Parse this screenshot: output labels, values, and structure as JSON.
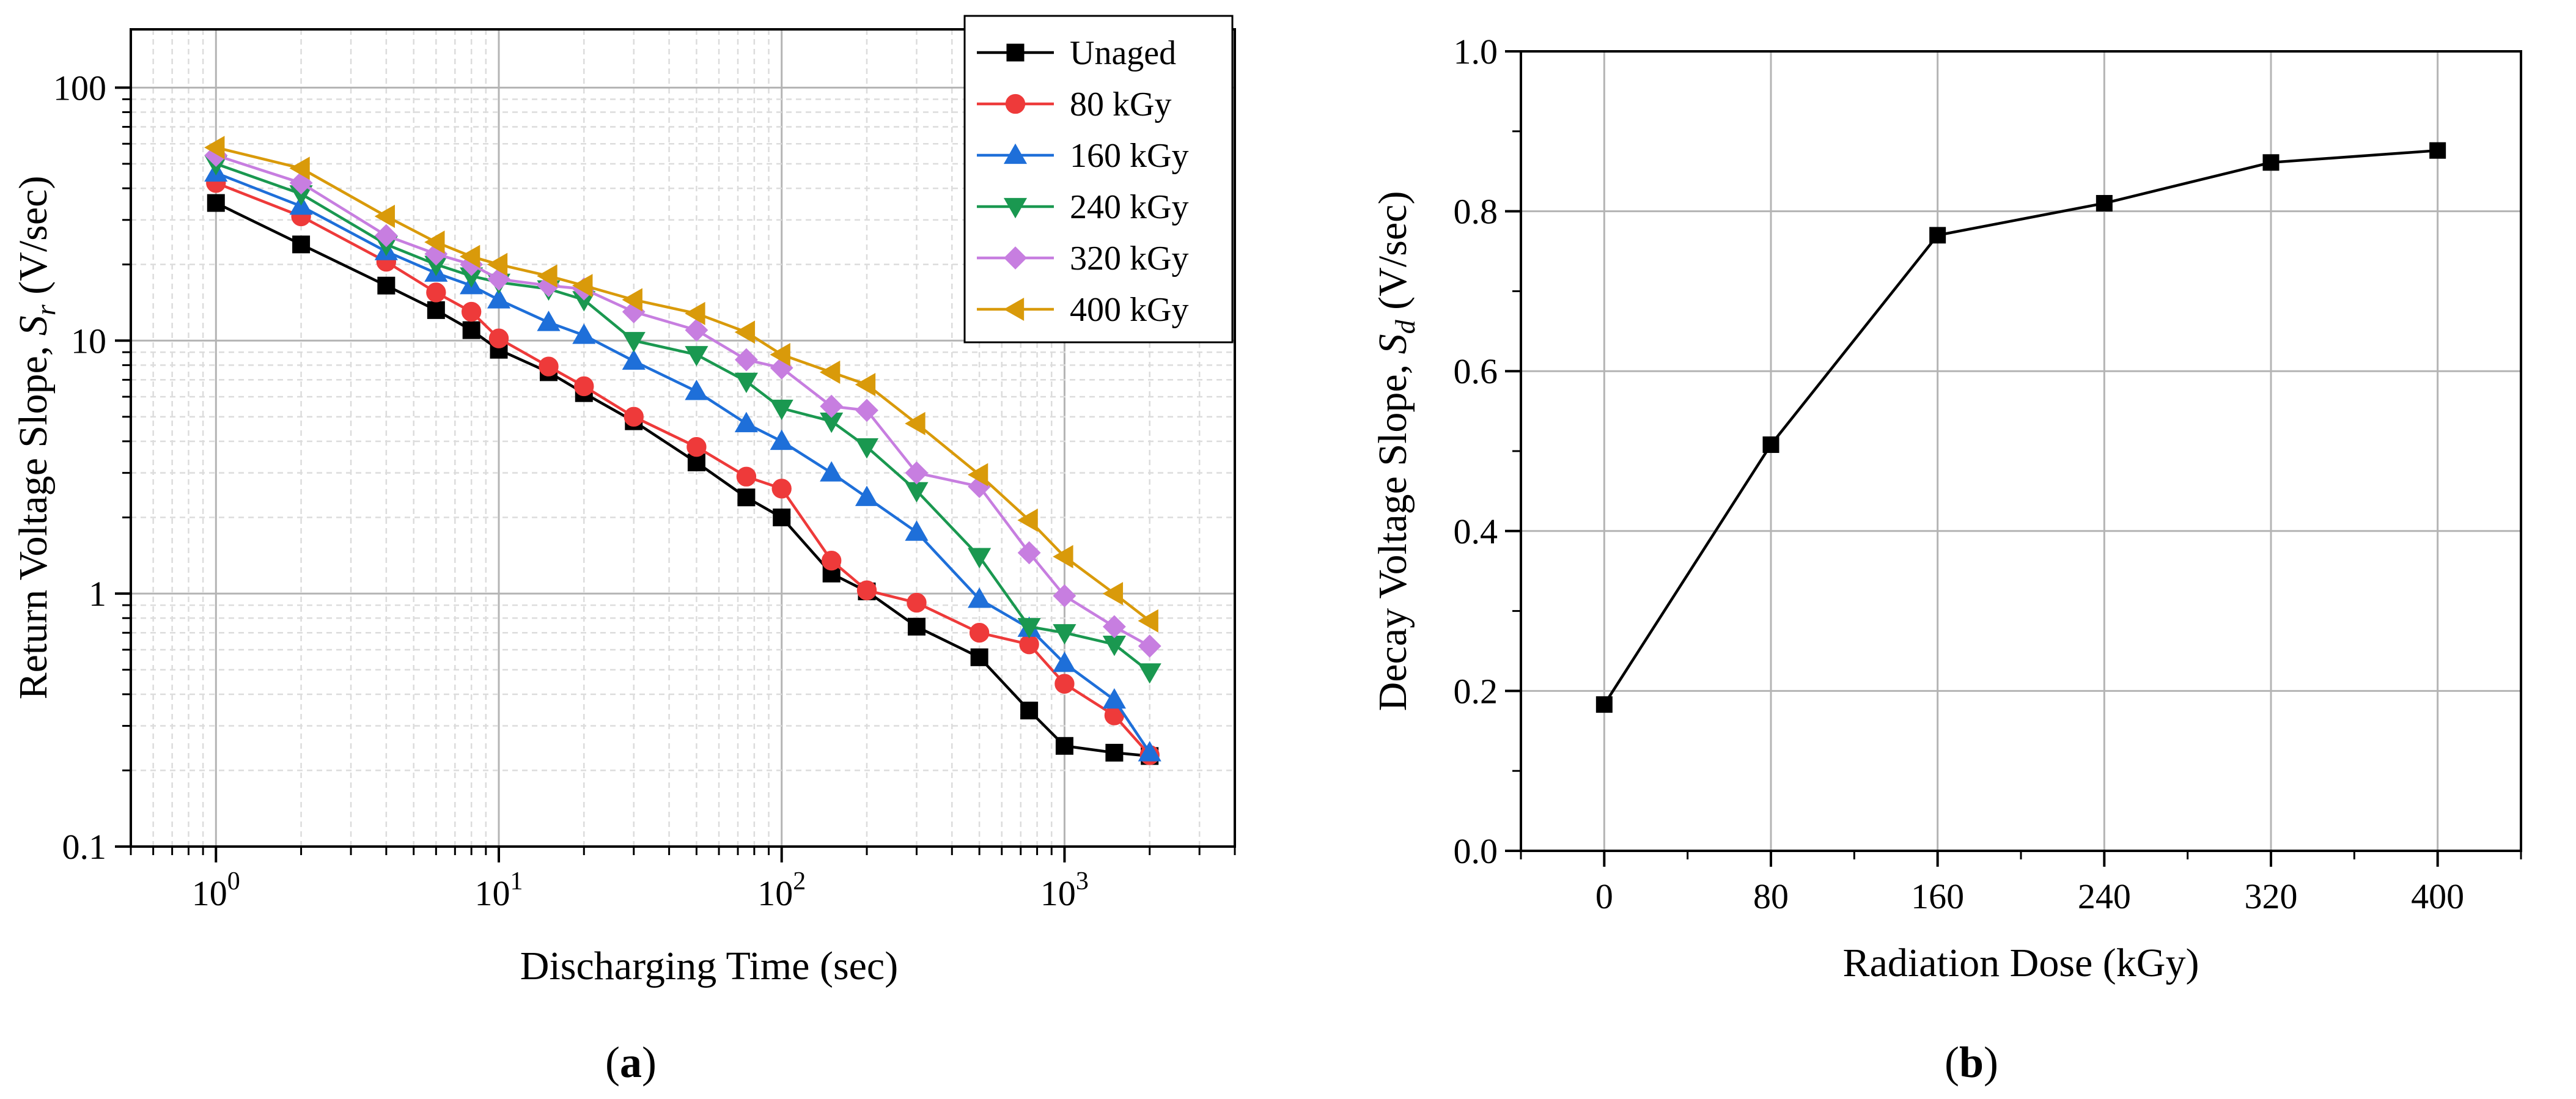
{
  "chart_data": [
    {
      "type": "line",
      "panel": "a",
      "xlabel": "Discharging Time (sec)",
      "ylabel": "Return Voltage Slope, S_r (V/sec)",
      "ylabel_main": "Return Voltage Slope, ",
      "ylabel_symbol": "S",
      "ylabel_sub": "r",
      "ylabel_units": " (V/sec)",
      "xscale": "log",
      "yscale": "log",
      "xlim": [
        0.5,
        4000
      ],
      "ylim": [
        0.1,
        170
      ],
      "x_tick_labels": [
        {
          "value": 1,
          "base": "10",
          "exp": "0"
        },
        {
          "value": 10,
          "base": "10",
          "exp": "1"
        },
        {
          "value": 100,
          "base": "10",
          "exp": "2"
        },
        {
          "value": 1000,
          "base": "10",
          "exp": "3"
        }
      ],
      "y_tick_labels": [
        {
          "value": 0.1,
          "label": "0.1"
        },
        {
          "value": 1,
          "label": "1"
        },
        {
          "value": 10,
          "label": "10"
        },
        {
          "value": 100,
          "label": "100"
        }
      ],
      "grid": true,
      "legend_position": "top-right",
      "x": [
        1,
        2,
        4,
        6,
        8,
        10,
        15,
        20,
        30,
        50,
        75,
        100,
        150,
        200,
        300,
        500,
        750,
        1000,
        1500,
        2000
      ],
      "series": [
        {
          "name": "Unaged",
          "color": "#000000",
          "marker": "square",
          "values": [
            35,
            24,
            16.5,
            13.2,
            11,
            9.2,
            7.5,
            6.2,
            4.8,
            3.3,
            2.4,
            2.0,
            1.2,
            1.02,
            0.74,
            0.56,
            0.345,
            0.25,
            0.235,
            0.228
          ]
        },
        {
          "name": "80 kGy",
          "color": "#ee3a3a",
          "marker": "circle",
          "values": [
            42,
            31,
            20.5,
            15.5,
            13,
            10.2,
            7.9,
            6.6,
            5.0,
            3.8,
            2.9,
            2.6,
            1.35,
            1.03,
            0.92,
            0.7,
            0.63,
            0.44,
            0.33,
            0.23
          ]
        },
        {
          "name": "160 kGy",
          "color": "#1e6fd9",
          "marker": "triangle-up",
          "values": [
            46,
            34,
            22.5,
            18.5,
            16.5,
            14.5,
            11.8,
            10.5,
            8.3,
            6.3,
            4.7,
            4.0,
            3.0,
            2.4,
            1.75,
            0.95,
            0.73,
            0.53,
            0.38,
            0.235
          ]
        },
        {
          "name": "240 kGy",
          "color": "#1a9850",
          "marker": "triangle-down",
          "values": [
            50,
            38,
            24,
            20,
            18,
            17,
            16,
            14.5,
            10,
            8.8,
            6.9,
            5.4,
            4.8,
            3.8,
            2.55,
            1.4,
            0.74,
            0.7,
            0.63,
            0.49
          ]
        },
        {
          "name": "320 kGy",
          "color": "#c77ee0",
          "marker": "diamond",
          "values": [
            54,
            42,
            26,
            22,
            20,
            17.5,
            16.5,
            16,
            13,
            11,
            8.4,
            7.8,
            5.5,
            5.3,
            3.0,
            2.65,
            1.45,
            0.98,
            0.74,
            0.62
          ]
        },
        {
          "name": "400 kGy",
          "color": "#d99a0a",
          "marker": "triangle-left",
          "values": [
            58,
            48,
            31,
            24.5,
            21.5,
            20,
            18,
            16.5,
            14.5,
            12.8,
            10.8,
            8.8,
            7.5,
            6.7,
            4.7,
            2.95,
            1.95,
            1.4,
            1.0,
            0.78
          ]
        }
      ]
    },
    {
      "type": "line",
      "panel": "b",
      "xlabel": "Radiation Dose (kGy)",
      "ylabel": "Decay Voltage Slope, S_d (V/sec)",
      "ylabel_main": "Decay Voltage Slope, ",
      "ylabel_symbol": "S",
      "ylabel_sub": "d",
      "ylabel_units": " (V/sec)",
      "xlim": [
        -40,
        440
      ],
      "ylim": [
        0.0,
        1.0
      ],
      "x_ticks": [
        0,
        80,
        160,
        240,
        320,
        400
      ],
      "x_tick_labels": [
        "0",
        "80",
        "160",
        "240",
        "320",
        "400"
      ],
      "y_ticks": [
        0.0,
        0.2,
        0.4,
        0.6,
        0.8,
        1.0
      ],
      "y_tick_labels": [
        "0.0",
        "0.2",
        "0.4",
        "0.6",
        "0.8",
        "1.0"
      ],
      "grid": true,
      "series": [
        {
          "name": "Decay Voltage Slope",
          "color": "#000000",
          "marker": "square",
          "x": [
            0,
            80,
            160,
            240,
            320,
            400
          ],
          "values": [
            0.183,
            0.508,
            0.77,
            0.81,
            0.861,
            0.876
          ]
        }
      ]
    }
  ],
  "panel_labels": {
    "a": "a",
    "b": "b"
  }
}
